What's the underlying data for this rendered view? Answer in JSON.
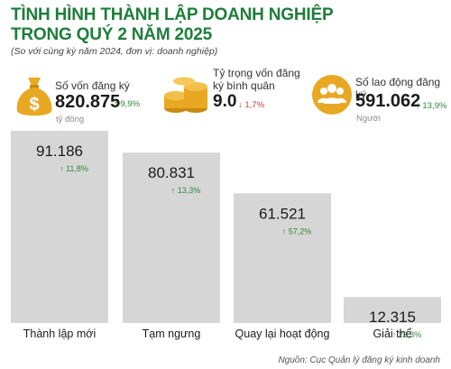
{
  "header": {
    "title_line1": "TÌNH HÌNH THÀNH LẬP DOANH NGHIỆP",
    "title_line2": "TRONG QUÝ 2 NĂM 2025",
    "subtitle": "(So với cùng kỳ năm 2024, đơn vị: doanh nghiệp)"
  },
  "kpis": [
    {
      "label": "Số vốn đăng ký",
      "value": "820.875",
      "change": "↑ 9,9%",
      "direction": "up",
      "unit": "tỷ đồng",
      "icon": "money-bag-icon"
    },
    {
      "label_line1": "Tỷ trọng vốn đăng",
      "label_line2": "ký bình quân",
      "value": "9.0",
      "change": "↓ 1,7%",
      "direction": "down",
      "icon": "coins-stack-icon"
    },
    {
      "label": "Số lao động đăng ký",
      "value": "591.062",
      "change": "↑ 13,9%",
      "direction": "up",
      "unit": "Người",
      "icon": "people-icon"
    }
  ],
  "colors": {
    "title": "#1e7d3a",
    "icon_gold": "#e8a823",
    "bar": "#d6d6d6",
    "up": "#2e8b3a",
    "down": "#d23a2a"
  },
  "chart_data": {
    "type": "bar",
    "categories": [
      "Thành lập mới",
      "Tạm ngưng",
      "Quay lại hoạt động",
      "Giải thể"
    ],
    "values": [
      91186,
      80831,
      61521,
      12315
    ],
    "value_labels": [
      "91.186",
      "80.831",
      "61.521",
      "12.315"
    ],
    "changes": [
      "↑ 11,8%",
      "↑ 13,3%",
      "↑ 57,2%",
      "↑ 23,3%"
    ],
    "grid": false
  },
  "source": "Nguồn: Cục Quản lý đăng ký kinh doanh"
}
